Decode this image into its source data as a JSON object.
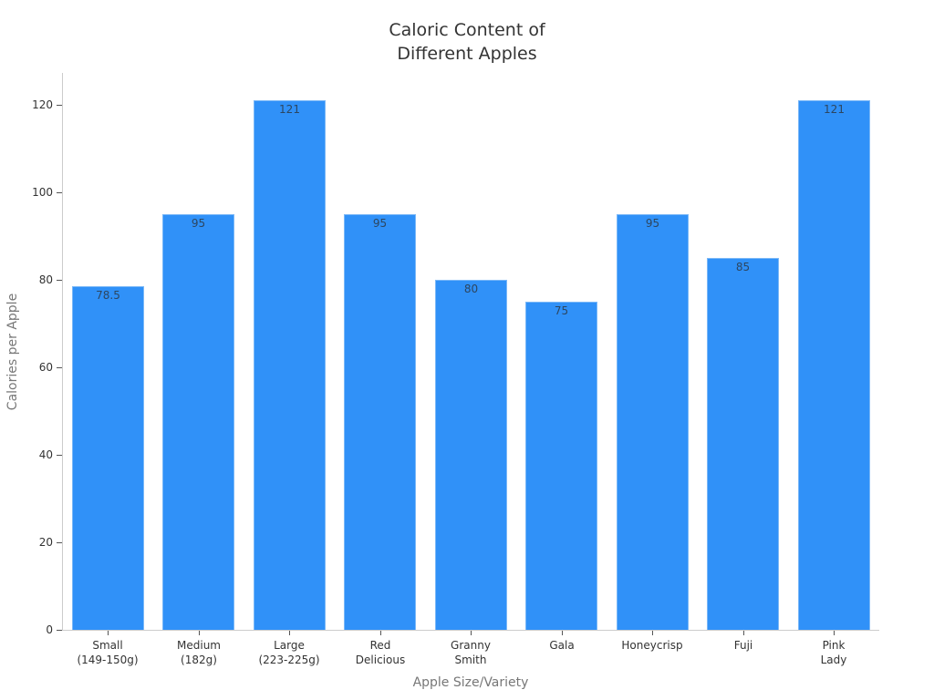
{
  "chart_data": {
    "type": "bar",
    "title": "Caloric Content of Different Apples",
    "title_lines": [
      "Caloric Content of",
      "Different Apples"
    ],
    "xlabel": "Apple Size/Variety",
    "ylabel": "Calories per Apple",
    "ylim": [
      0,
      127
    ],
    "yticks": [
      0,
      20,
      40,
      60,
      80,
      100,
      120
    ],
    "grid": false,
    "legend": null,
    "bar_color": "#3091f8",
    "categories": [
      "Small (149-150g)",
      "Medium (182g)",
      "Large (223-225g)",
      "Red Delicious",
      "Granny Smith",
      "Gala",
      "Honeycrisp",
      "Fuji",
      "Pink Lady"
    ],
    "category_lines": [
      [
        "Small",
        "(149-150g)"
      ],
      [
        "Medium",
        "(182g)"
      ],
      [
        "Large",
        "(223-225g)"
      ],
      [
        "Red",
        "Delicious"
      ],
      [
        "Granny",
        "Smith"
      ],
      [
        "Gala"
      ],
      [
        "Honeycrisp"
      ],
      [
        "Fuji"
      ],
      [
        "Pink",
        "Lady"
      ]
    ],
    "values": [
      78.5,
      95,
      121,
      95,
      80,
      75,
      95,
      85,
      121
    ],
    "value_labels": [
      "78.5",
      "95",
      "121",
      "95",
      "80",
      "75",
      "95",
      "85",
      "121"
    ]
  }
}
